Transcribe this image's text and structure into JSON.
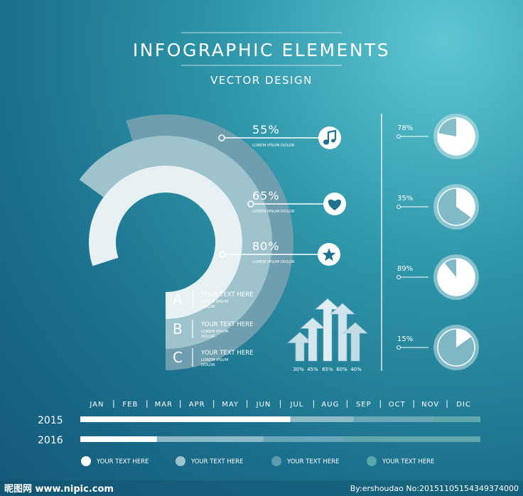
{
  "header": {
    "title": "INFOGRAPHIC ELEMENTS",
    "subtitle": "VECTOR DESIGN"
  },
  "chart_data": [
    {
      "type": "radial-bar",
      "series": [
        {
          "label": "55%",
          "value": 55,
          "caption": "LOREM IPSUM DOLOR",
          "icon": "music-note-icon",
          "color": "#6f9fae"
        },
        {
          "label": "65%",
          "value": 65,
          "caption": "LOREM IPSUM DOLOR",
          "icon": "heart-icon",
          "color": "#9ec3cc"
        },
        {
          "label": "80%",
          "value": 80,
          "caption": "LOREM IPSUM DOLOR",
          "icon": "star-icon",
          "color": "#e7f1f4"
        }
      ]
    },
    {
      "type": "list",
      "items": [
        {
          "letter": "A",
          "title": "YOUR TEXT HERE",
          "line1": "LOREM IPSUM",
          "line2": "DOLOR"
        },
        {
          "letter": "B",
          "title": "YOUR TEXT HERE",
          "line1": "LOREM IPSUM",
          "line2": "DOLOR"
        },
        {
          "letter": "C",
          "title": "YOUR TEXT HERE",
          "line1": "LOREM IPSUM",
          "line2": "DOLOR"
        }
      ]
    },
    {
      "type": "bar",
      "style": "arrows",
      "labels": [
        "30%",
        "45%",
        "65%",
        "60%",
        "40%"
      ],
      "values": [
        30,
        45,
        65,
        60,
        40
      ]
    },
    {
      "type": "pie",
      "items": [
        {
          "label": "78%",
          "value": 78
        },
        {
          "label": "35%",
          "value": 35
        },
        {
          "label": "89%",
          "value": 89
        },
        {
          "label": "15%",
          "value": 15
        }
      ]
    },
    {
      "type": "bar",
      "orientation": "horizontal",
      "categories": [
        "JAN",
        "FEB",
        "MAR",
        "APR",
        "MAY",
        "JUN",
        "JUL",
        "AUG",
        "SEP",
        "OCT",
        "NOV",
        "DIC"
      ],
      "rows": [
        {
          "name": "2015",
          "segments": [
            6.3,
            1.9,
            2.4,
            1.4
          ]
        },
        {
          "name": "2016",
          "segments": [
            2.3,
            3.2,
            2.4,
            4.1
          ]
        }
      ],
      "legend": [
        {
          "label": "YOUR TEXT HERE",
          "color": "#ffffff"
        },
        {
          "label": "YOUR TEXT HERE",
          "color": "#9ec3cc"
        },
        {
          "label": "YOUR TEXT HERE",
          "color": "#5e9bac"
        },
        {
          "label": "YOUR TEXT HERE",
          "color": "#5aa6a8"
        }
      ]
    }
  ],
  "footer": {
    "logo_text": "昵图网 www.nipic.com",
    "credit": "By:ershoudao No:20151105154349374000"
  }
}
